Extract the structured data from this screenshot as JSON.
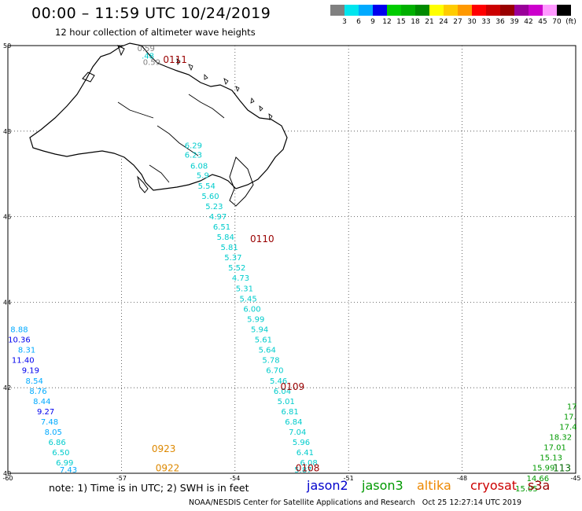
{
  "title": "00:00 – 11:59 UTC 10/24/2019",
  "subtitle": "12 hour collection of altimeter wave heights",
  "color_scale": {
    "colors": [
      "#808080",
      "#00e5ee",
      "#00aaff",
      "#0000ee",
      "#00cc00",
      "#00b000",
      "#008a00",
      "#ffff00",
      "#ffcc00",
      "#ff9900",
      "#ff0000",
      "#cc0000",
      "#990000",
      "#990099",
      "#cc00cc",
      "#ff99ff",
      "#000000"
    ],
    "labels": [
      "3",
      "6",
      "9",
      "12",
      "15",
      "18",
      "21",
      "24",
      "27",
      "30",
      "33",
      "36",
      "39",
      "42",
      "45",
      "70",
      "(ft)"
    ]
  },
  "map": {
    "x_ticks": [
      "-60",
      "-57",
      "-54",
      "-51",
      "-48",
      "-45"
    ],
    "y_ticks": [
      "50",
      "48",
      "46",
      "44",
      "42",
      "40"
    ],
    "lon_range": [
      -60,
      -45
    ],
    "lat_range": [
      40,
      50
    ],
    "track_labels": [
      {
        "text": "0111",
        "color": "#990000",
        "lon": -55.9,
        "lat": 49.6
      },
      {
        "text": "0110",
        "color": "#990000",
        "lon": -53.6,
        "lat": 45.4
      },
      {
        "text": "0109",
        "color": "#990000",
        "lon": -52.8,
        "lat": 41.95
      },
      {
        "text": "0108",
        "color": "#990000",
        "lon": -52.4,
        "lat": 40.05
      },
      {
        "text": "0923",
        "color": "#dd8800",
        "lon": -56.2,
        "lat": 40.5
      },
      {
        "text": "0922",
        "color": "#dd8800",
        "lon": -56.1,
        "lat": 40.05
      },
      {
        "text": "113",
        "color": "#006600",
        "lon": -45.6,
        "lat": 40.05
      }
    ],
    "points": [
      {
        "text": "0.59",
        "color": "#808080",
        "lon": -56.35,
        "lat": 49.87
      },
      {
        "text": ".48",
        "color": "#00cccc",
        "lon": -56.3,
        "lat": 49.7
      },
      {
        "text": "0.59",
        "color": "#808080",
        "lon": -56.2,
        "lat": 49.55
      },
      {
        "text": "6.29",
        "color": "#00cccc",
        "lon": -55.1,
        "lat": 47.6
      },
      {
        "text": "6.23",
        "color": "#00cccc",
        "lon": -55.1,
        "lat": 47.38
      },
      {
        "text": "6.08",
        "color": "#00cccc",
        "lon": -54.95,
        "lat": 47.12
      },
      {
        "text": "5.9",
        "color": "#00cccc",
        "lon": -54.85,
        "lat": 46.9
      },
      {
        "text": "5.54",
        "color": "#00cccc",
        "lon": -54.75,
        "lat": 46.65
      },
      {
        "text": "5.60",
        "color": "#00cccc",
        "lon": -54.65,
        "lat": 46.42
      },
      {
        "text": "5.23",
        "color": "#00cccc",
        "lon": -54.55,
        "lat": 46.18
      },
      {
        "text": "4.97",
        "color": "#00cccc",
        "lon": -54.45,
        "lat": 45.94
      },
      {
        "text": "6.51",
        "color": "#00cccc",
        "lon": -54.35,
        "lat": 45.7
      },
      {
        "text": "5.84",
        "color": "#00cccc",
        "lon": -54.25,
        "lat": 45.46
      },
      {
        "text": "5.81",
        "color": "#00cccc",
        "lon": -54.15,
        "lat": 45.22
      },
      {
        "text": "5.37",
        "color": "#00cccc",
        "lon": -54.05,
        "lat": 44.98
      },
      {
        "text": "5.52",
        "color": "#00cccc",
        "lon": -53.95,
        "lat": 44.74
      },
      {
        "text": "4.73",
        "color": "#00cccc",
        "lon": -53.85,
        "lat": 44.5
      },
      {
        "text": "5.31",
        "color": "#00cccc",
        "lon": -53.75,
        "lat": 44.26
      },
      {
        "text": "5.45",
        "color": "#00cccc",
        "lon": -53.65,
        "lat": 44.02
      },
      {
        "text": "6.00",
        "color": "#00cccc",
        "lon": -53.55,
        "lat": 43.78
      },
      {
        "text": "5.99",
        "color": "#00cccc",
        "lon": -53.45,
        "lat": 43.54
      },
      {
        "text": "5.94",
        "color": "#00cccc",
        "lon": -53.35,
        "lat": 43.3
      },
      {
        "text": "5.61",
        "color": "#00cccc",
        "lon": -53.25,
        "lat": 43.06
      },
      {
        "text": "5.64",
        "color": "#00cccc",
        "lon": -53.15,
        "lat": 42.82
      },
      {
        "text": "5.78",
        "color": "#00cccc",
        "lon": -53.05,
        "lat": 42.58
      },
      {
        "text": "6.70",
        "color": "#00cccc",
        "lon": -52.95,
        "lat": 42.34
      },
      {
        "text": "5.46",
        "color": "#00cccc",
        "lon": -52.85,
        "lat": 42.1
      },
      {
        "text": "6.04",
        "color": "#00cccc",
        "lon": -52.75,
        "lat": 41.86
      },
      {
        "text": "5.01",
        "color": "#00cccc",
        "lon": -52.65,
        "lat": 41.62
      },
      {
        "text": "6.81",
        "color": "#00cccc",
        "lon": -52.55,
        "lat": 41.38
      },
      {
        "text": "6.84",
        "color": "#00cccc",
        "lon": -52.45,
        "lat": 41.14
      },
      {
        "text": "7.04",
        "color": "#00cccc",
        "lon": -52.35,
        "lat": 40.9
      },
      {
        "text": "5.96",
        "color": "#00cccc",
        "lon": -52.25,
        "lat": 40.66
      },
      {
        "text": "6.41",
        "color": "#00cccc",
        "lon": -52.15,
        "lat": 40.42
      },
      {
        "text": "6.08",
        "color": "#00cccc",
        "lon": -52.05,
        "lat": 40.18
      },
      {
        "text": "5.87",
        "color": "#00cccc",
        "lon": -52.2,
        "lat": 40.02
      },
      {
        "text": "8.88",
        "color": "#00aaff",
        "lon": -59.7,
        "lat": 43.3
      },
      {
        "text": "10.36",
        "color": "#0000ee",
        "lon": -59.7,
        "lat": 43.06
      },
      {
        "text": "8.31",
        "color": "#00aaff",
        "lon": -59.5,
        "lat": 42.82
      },
      {
        "text": "11.40",
        "color": "#0000ee",
        "lon": -59.6,
        "lat": 42.58
      },
      {
        "text": "9.19",
        "color": "#0000ee",
        "lon": -59.4,
        "lat": 42.34
      },
      {
        "text": "8.54",
        "color": "#00aaff",
        "lon": -59.3,
        "lat": 42.1
      },
      {
        "text": "8.76",
        "color": "#00aaff",
        "lon": -59.2,
        "lat": 41.86
      },
      {
        "text": "8.44",
        "color": "#00aaff",
        "lon": -59.1,
        "lat": 41.62
      },
      {
        "text": "9.27",
        "color": "#0000ee",
        "lon": -59.0,
        "lat": 41.38
      },
      {
        "text": "7.48",
        "color": "#00aaff",
        "lon": -58.9,
        "lat": 41.14
      },
      {
        "text": "8.05",
        "color": "#00aaff",
        "lon": -58.8,
        "lat": 40.9
      },
      {
        "text": "6.86",
        "color": "#00cccc",
        "lon": -58.7,
        "lat": 40.66
      },
      {
        "text": "6.50",
        "color": "#00cccc",
        "lon": -58.6,
        "lat": 40.42
      },
      {
        "text": "6.99",
        "color": "#00cccc",
        "lon": -58.5,
        "lat": 40.18
      },
      {
        "text": "7.43",
        "color": "#00aaff",
        "lon": -58.4,
        "lat": 40.02
      },
      {
        "text": "17",
        "color": "#009900",
        "lon": -45.1,
        "lat": 41.5
      },
      {
        "text": "17.",
        "color": "#009900",
        "lon": -45.15,
        "lat": 41.26
      },
      {
        "text": "17.4",
        "color": "#009900",
        "lon": -45.2,
        "lat": 41.02
      },
      {
        "text": "18.32",
        "color": "#009900",
        "lon": -45.4,
        "lat": 40.78
      },
      {
        "text": "17.01",
        "color": "#009900",
        "lon": -45.55,
        "lat": 40.54
      },
      {
        "text": "15.13",
        "color": "#009900",
        "lon": -45.65,
        "lat": 40.3
      },
      {
        "text": "15.99",
        "color": "#009900",
        "lon": -45.85,
        "lat": 40.06
      },
      {
        "text": "14.66",
        "color": "#009900",
        "lon": -46.0,
        "lat": 39.82
      },
      {
        "text": "15.05",
        "color": "#009900",
        "lon": -46.3,
        "lat": 39.58
      }
    ]
  },
  "note": "note: 1) Time is in UTC; 2) SWH is in feet",
  "legend": [
    {
      "text": "jason2",
      "color": "#0000cc"
    },
    {
      "text": "jason3",
      "color": "#009900"
    },
    {
      "text": "altika",
      "color": "#ee8800"
    },
    {
      "text": "cryosat",
      "color": "#cc0000"
    },
    {
      "text": "s3a",
      "color": "#990000"
    }
  ],
  "credit": "NOAA/NESDIS Center for Satellite Applications and Research   Oct 25 12:27:14 UTC 2019"
}
